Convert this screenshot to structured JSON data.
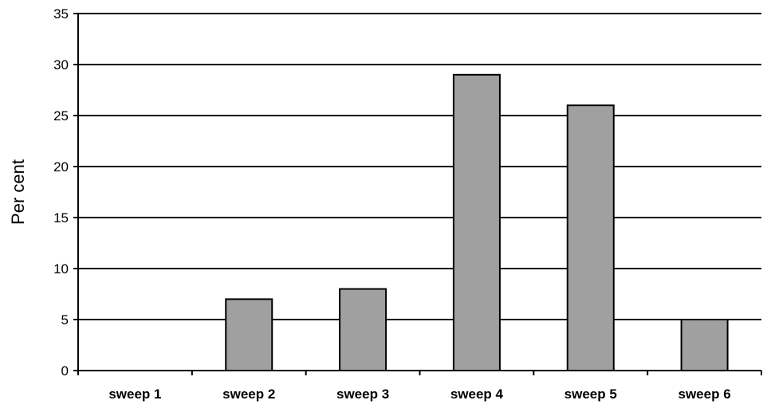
{
  "chart_data": {
    "type": "bar",
    "categories": [
      "sweep 1",
      "sweep 2",
      "sweep 3",
      "sweep 4",
      "sweep 5",
      "sweep 6"
    ],
    "values": [
      0,
      7,
      8,
      29,
      26,
      5
    ],
    "xlabel": "",
    "ylabel": "Per cent",
    "ylim": [
      0,
      35
    ],
    "yticks": [
      0,
      5,
      10,
      15,
      20,
      25,
      30,
      35
    ],
    "grid": true,
    "legend": "none",
    "colors": {
      "bar_fill": "#a0a0a0",
      "bar_stroke": "#000000",
      "grid": "#000000",
      "axis": "#000000"
    }
  }
}
